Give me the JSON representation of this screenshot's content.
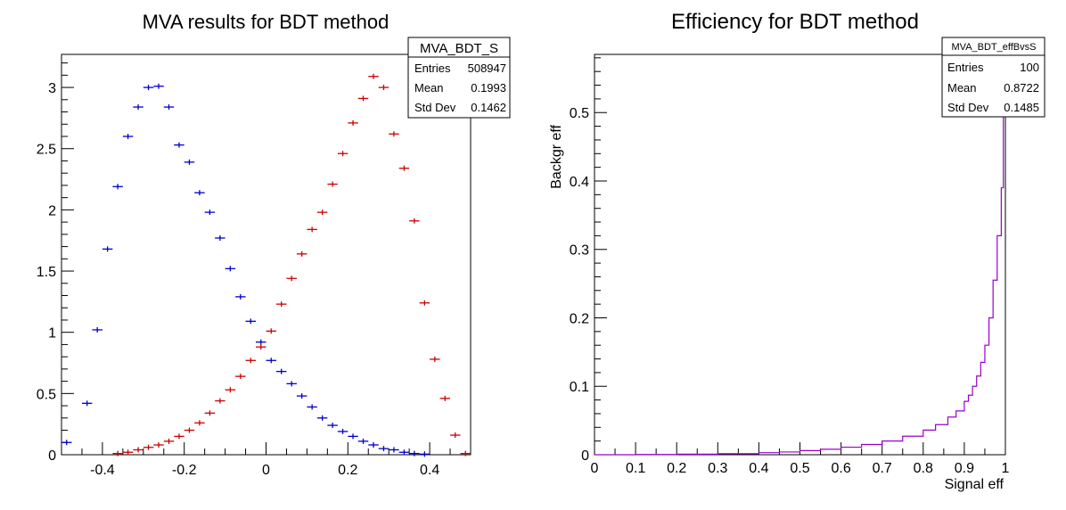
{
  "chart_data": [
    {
      "type": "scatter",
      "title": "MVA results for BDT method",
      "xlabel": "",
      "ylabel": "",
      "xlim": [
        -0.5,
        0.5
      ],
      "ylim": [
        0,
        3.27
      ],
      "x_ticks": [
        "-0.4",
        "-0.2",
        "0",
        "0.2",
        "0.4"
      ],
      "x_tick_values": [
        -0.4,
        -0.2,
        0,
        0.2,
        0.4
      ],
      "y_ticks": [
        "0",
        "0.5",
        "1",
        "1.5",
        "2",
        "2.5",
        "3"
      ],
      "y_tick_values": [
        0,
        0.5,
        1,
        1.5,
        2,
        2.5,
        3
      ],
      "bin_width": 0.025,
      "stats_box": {
        "name": "MVA_BDT_S",
        "rows": [
          {
            "label": "Entries",
            "value": "508947"
          },
          {
            "label": "Mean",
            "value": "0.1993"
          },
          {
            "label": "Std Dev",
            "value": "0.1462"
          }
        ]
      },
      "series": [
        {
          "color": "#0000cc",
          "x": [
            -0.4875,
            -0.4375,
            -0.4125,
            -0.3875,
            -0.3625,
            -0.3375,
            -0.3125,
            -0.2875,
            -0.2625,
            -0.2375,
            -0.2125,
            -0.1875,
            -0.1625,
            -0.1375,
            -0.1125,
            -0.0875,
            -0.0625,
            -0.0375,
            -0.0125,
            0.0125,
            0.0375,
            0.0625,
            0.0875,
            0.1125,
            0.1375,
            0.1625,
            0.1875,
            0.2125,
            0.2375,
            0.2625,
            0.2875,
            0.3125,
            0.3375,
            0.3625,
            0.3875
          ],
          "y": [
            0.1,
            0.42,
            1.02,
            1.68,
            2.19,
            2.6,
            2.84,
            3.0,
            3.01,
            2.84,
            2.53,
            2.39,
            2.14,
            1.98,
            1.77,
            1.52,
            1.29,
            1.09,
            0.92,
            0.77,
            0.68,
            0.58,
            0.48,
            0.39,
            0.3,
            0.24,
            0.19,
            0.15,
            0.11,
            0.08,
            0.05,
            0.04,
            0.02,
            0.01,
            0.005
          ]
        },
        {
          "color": "#cc0000",
          "x": [
            -0.3625,
            -0.3375,
            -0.3125,
            -0.2875,
            -0.2625,
            -0.2375,
            -0.2125,
            -0.1875,
            -0.1625,
            -0.1375,
            -0.1125,
            -0.0875,
            -0.0625,
            -0.0375,
            -0.0125,
            0.0125,
            0.0375,
            0.0625,
            0.0875,
            0.1125,
            0.1375,
            0.1625,
            0.1875,
            0.2125,
            0.2375,
            0.2625,
            0.2875,
            0.3125,
            0.3375,
            0.3625,
            0.3875,
            0.4125,
            0.4375,
            0.4625,
            0.4875
          ],
          "y": [
            0.01,
            0.02,
            0.04,
            0.06,
            0.08,
            0.11,
            0.15,
            0.2,
            0.26,
            0.34,
            0.44,
            0.53,
            0.64,
            0.77,
            0.88,
            1.01,
            1.23,
            1.44,
            1.64,
            1.84,
            1.98,
            2.21,
            2.46,
            2.71,
            2.91,
            3.09,
            3.0,
            2.62,
            2.34,
            1.91,
            1.24,
            0.78,
            0.46,
            0.16,
            0.01
          ]
        }
      ]
    },
    {
      "type": "line",
      "title": "Efficiency for BDT method",
      "xlabel": "Signal eff",
      "ylabel": "Backgr eff",
      "xlim": [
        0,
        1
      ],
      "ylim": [
        0,
        0.585
      ],
      "x_ticks": [
        "0",
        "0.1",
        "0.2",
        "0.3",
        "0.4",
        "0.5",
        "0.6",
        "0.7",
        "0.8",
        "0.9",
        "1"
      ],
      "x_tick_values": [
        0,
        0.1,
        0.2,
        0.3,
        0.4,
        0.5,
        0.6,
        0.7,
        0.8,
        0.9,
        1
      ],
      "y_ticks": [
        "0",
        "0.1",
        "0.2",
        "0.3",
        "0.4",
        "0.5"
      ],
      "y_tick_values": [
        0,
        0.1,
        0.2,
        0.3,
        0.4,
        0.5
      ],
      "stats_box": {
        "name": "MVA_BDT_effBvsS",
        "rows": [
          {
            "label": "Entries",
            "value": "100"
          },
          {
            "label": "Mean",
            "value": "0.8722"
          },
          {
            "label": "Std Dev",
            "value": "0.1485"
          }
        ]
      },
      "series": [
        {
          "color": "#9900cc",
          "x": [
            0,
            0.1,
            0.2,
            0.3,
            0.4,
            0.45,
            0.5,
            0.55,
            0.6,
            0.65,
            0.7,
            0.75,
            0.8,
            0.83,
            0.86,
            0.88,
            0.9,
            0.91,
            0.92,
            0.93,
            0.94,
            0.95,
            0.96,
            0.97,
            0.98,
            0.99,
            0.995,
            1.0
          ],
          "y": [
            0.0,
            0.0003,
            0.0008,
            0.0015,
            0.003,
            0.004,
            0.006,
            0.008,
            0.011,
            0.015,
            0.02,
            0.027,
            0.036,
            0.044,
            0.055,
            0.064,
            0.078,
            0.087,
            0.1,
            0.115,
            0.135,
            0.16,
            0.2,
            0.255,
            0.32,
            0.39,
            0.5,
            0.585
          ]
        }
      ]
    }
  ]
}
